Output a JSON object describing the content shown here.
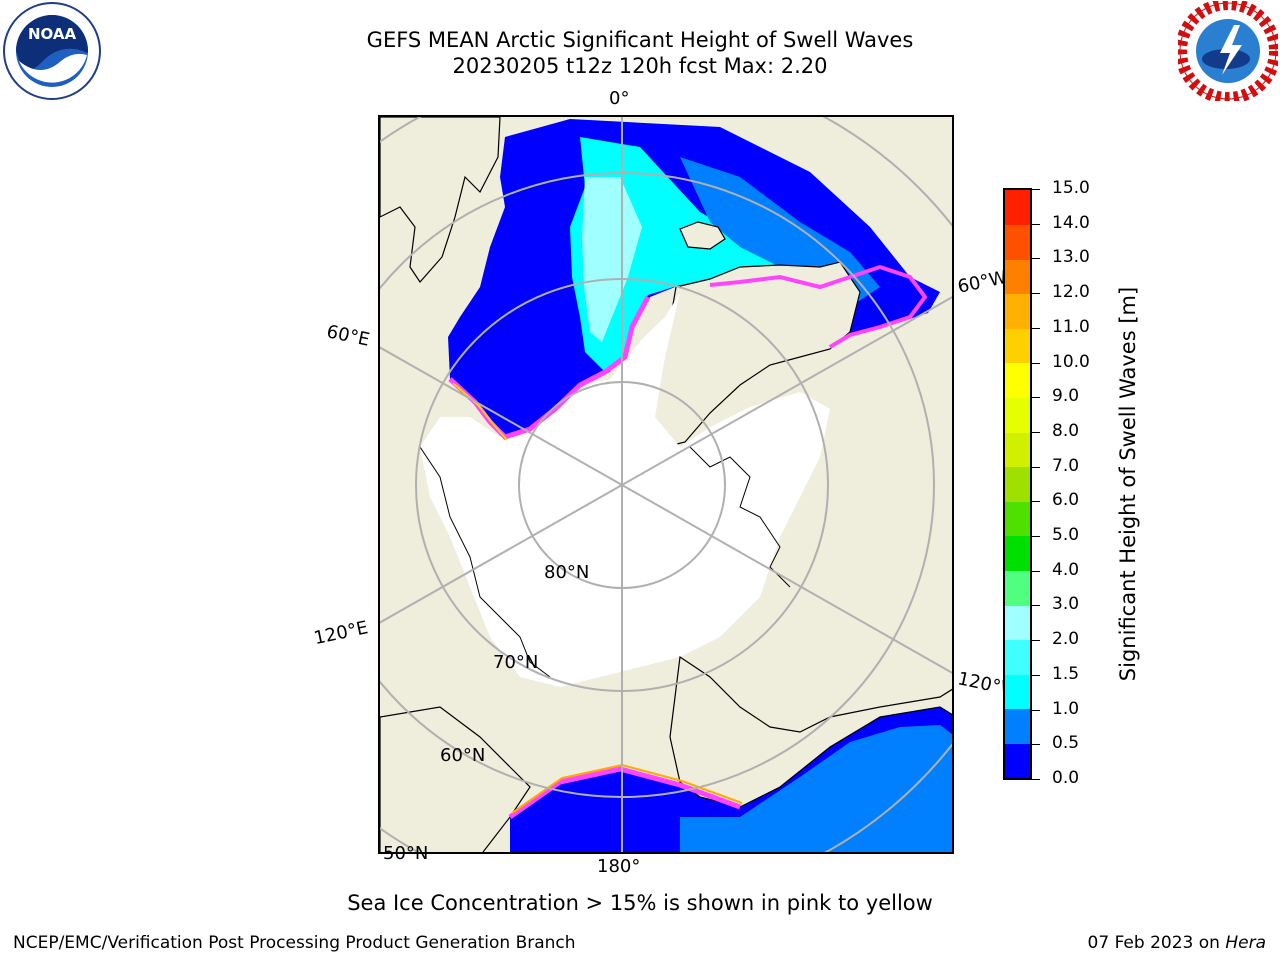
{
  "header": {
    "title_line1": "GEFS MEAN Arctic Significant Height of Swell Waves",
    "title_line2": "20230205 t12z 120h fcst   Max: 2.20"
  },
  "map": {
    "lon_labels": [
      "0°",
      "60°W",
      "120°W",
      "180°",
      "120°E",
      "60°E"
    ],
    "lat_labels": [
      "80°N",
      "70°N",
      "60°N",
      "50°N"
    ],
    "land_color": "#efeddc",
    "ice_edge_colors": [
      "#ff44ff",
      "#ffaa00",
      "#ffe600"
    ]
  },
  "colorbar": {
    "label": "Significant Height of Swell Waves [m]",
    "ticks": [
      "0.0",
      "0.5",
      "1.0",
      "1.5",
      "2.0",
      "3.0",
      "4.0",
      "5.0",
      "6.0",
      "7.0",
      "8.0",
      "9.0",
      "10.0",
      "11.0",
      "12.0",
      "13.0",
      "14.0",
      "15.0"
    ],
    "colors": [
      "#0000ff",
      "#0080ff",
      "#00ffff",
      "#40ffff",
      "#a0ffff",
      "#50ff80",
      "#00e000",
      "#50e000",
      "#a0e000",
      "#d0f000",
      "#e6ff00",
      "#ffff00",
      "#ffd000",
      "#ffb000",
      "#ff8000",
      "#ff5000",
      "#ff2000",
      "#ff0000"
    ]
  },
  "caption": "Sea Ice Concentration > 15% is shown in pink to yellow",
  "footer": {
    "left": "NCEP/EMC/Verification Post Processing Product Generation Branch",
    "right_date": "07 Feb 2023 on ",
    "right_host": "Hera"
  },
  "logos": {
    "noaa_text": "NOAA"
  }
}
